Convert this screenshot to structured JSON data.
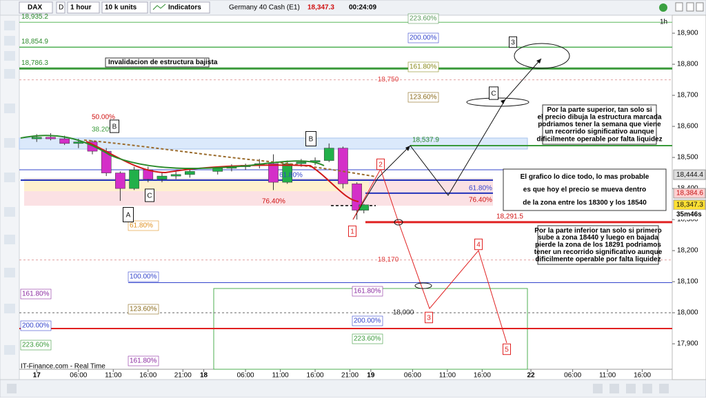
{
  "toolbar": {
    "symbol": "DAX",
    "period_code": "D",
    "timeframe": "1 hour",
    "units": "10 k units",
    "indicators": "Indicators",
    "instrument": "Germany 40 Cash (E1)",
    "price": "18,347.3",
    "timer": "00:24:09"
  },
  "chart_data": {
    "type": "candlestick",
    "timeframe_label": "1h",
    "x": [
      0,
      2,
      4,
      6,
      8,
      10,
      12,
      14,
      16,
      18,
      20,
      22,
      26,
      28,
      30,
      32,
      34,
      36,
      38,
      40,
      42,
      44,
      46,
      47
    ],
    "open": [
      18560,
      18565,
      18560,
      18545,
      18550,
      18520,
      18450,
      18400,
      18460,
      18430,
      18440,
      18445,
      18455,
      18465,
      18470,
      18475,
      18480,
      18420,
      18480,
      18485,
      18490,
      18530,
      18415,
      18330
    ],
    "high": [
      18575,
      18578,
      18570,
      18560,
      18555,
      18530,
      18455,
      18470,
      18470,
      18450,
      18455,
      18460,
      18470,
      18478,
      18480,
      18495,
      18510,
      18490,
      18495,
      18500,
      18545,
      18535,
      18420,
      18350
    ],
    "low": [
      18550,
      18555,
      18540,
      18530,
      18510,
      18440,
      18360,
      18395,
      18420,
      18420,
      18430,
      18435,
      18445,
      18455,
      18460,
      18465,
      18395,
      18415,
      18470,
      18475,
      18485,
      18400,
      18300,
      18320
    ],
    "close": [
      18565,
      18560,
      18545,
      18550,
      18520,
      18450,
      18400,
      18460,
      18430,
      18440,
      18445,
      18455,
      18465,
      18470,
      18475,
      18480,
      18420,
      18480,
      18485,
      18490,
      18530,
      18415,
      18330,
      18347.3
    ],
    "up_color": "#22b04a",
    "down_color": "#d42fc8",
    "xlim": [
      -2.5,
      91.3
    ],
    "ylim": [
      17818,
      18958
    ],
    "xticks": [
      {
        "value": 0,
        "label": "17"
      },
      {
        "value": 6,
        "label": "06:00"
      },
      {
        "value": 11,
        "label": "11:00"
      },
      {
        "value": 16,
        "label": "16:00"
      },
      {
        "value": 21,
        "label": "21:00"
      },
      {
        "value": 24,
        "label": "18"
      },
      {
        "value": 30,
        "label": "06:00"
      },
      {
        "value": 35,
        "label": "11:00"
      },
      {
        "value": 40,
        "label": "16:00"
      },
      {
        "value": 45,
        "label": "21:00"
      },
      {
        "value": 48,
        "label": "19"
      },
      {
        "value": 54,
        "label": "06:00"
      },
      {
        "value": 59,
        "label": "11:00"
      },
      {
        "value": 64,
        "label": "16:00"
      },
      {
        "value": 71,
        "label": "22"
      },
      {
        "value": 77,
        "label": "06:00"
      },
      {
        "value": 82,
        "label": "11:00"
      },
      {
        "value": 87,
        "label": "16:00"
      }
    ],
    "yticks": [
      {
        "value": 17900,
        "label": "17,900"
      },
      {
        "value": 18000,
        "label": "18,000"
      },
      {
        "value": 18100,
        "label": "18,100"
      },
      {
        "value": 18200,
        "label": "18,200"
      },
      {
        "value": 18300,
        "label": "18,300"
      },
      {
        "value": 18400,
        "label": "18,400"
      },
      {
        "value": 18500,
        "label": "18,500"
      },
      {
        "value": 18600,
        "label": "18,600"
      },
      {
        "value": 18700,
        "label": "18,700"
      },
      {
        "value": 18800,
        "label": "18,800"
      },
      {
        "value": 18900,
        "label": "18,900"
      }
    ],
    "levels": [
      {
        "value": 18935.2,
        "label": "18,935.2",
        "color": "#5cb85c"
      },
      {
        "value": 18854.9,
        "label": "18,854.9",
        "color": "#4caf50"
      },
      {
        "value": 18786.3,
        "label": "18,786.3",
        "color": "#3a9a3a"
      },
      {
        "value": 18750,
        "label": "18,750",
        "color": "#e0a0a0"
      },
      {
        "value": 18537.9,
        "label": "18,537.9",
        "color": "#3a9a3a"
      },
      {
        "value": 18291.5,
        "label": "18,291.5",
        "color": "#e02020"
      },
      {
        "value": 18170,
        "label": "18,170",
        "color": "#e0a0a0"
      },
      {
        "value": 18000,
        "label": "18,000",
        "color": "#666666"
      },
      {
        "value": 18097,
        "color": "#3344cc"
      },
      {
        "value": 17949,
        "color": "#e02020"
      },
      {
        "value": 18427,
        "color": "#2233bb"
      },
      {
        "value": 18385,
        "color": "#2233bb"
      },
      {
        "value": 18345,
        "color": "#000000"
      }
    ],
    "price_tags": [
      {
        "value": 18444.4,
        "label": "18,444.4",
        "color": "#dddddd"
      },
      {
        "value": 18384.6,
        "label": "18,384.6",
        "color": "#ffd0d0"
      },
      {
        "value": 18347.3,
        "label": "18,347.3",
        "color": "#ffe033"
      }
    ],
    "countdown": "35m46s",
    "fib_labels": [
      "223.60%",
      "200.00%",
      "161.80%",
      "123.60%",
      "61.80%",
      "76.40%",
      "61.80%",
      "76.40%",
      "61.80%",
      "100.00%",
      "161.80%",
      "123.60%",
      "200.00%",
      "223.60%",
      "161.80%",
      "161.80%",
      "200.00%",
      "223.60%",
      "50.00%",
      "38.20%"
    ],
    "markers": [
      "A",
      "B",
      "C",
      "B",
      "C",
      "3",
      "1",
      "2",
      "3",
      "4",
      "5"
    ],
    "notes": [
      {
        "lines": [
          "Invalidacion de estructura bajista"
        ]
      },
      {
        "lines": [
          "Por la parte superior, tan solo si",
          "el precio dibuja la estructura marcada",
          "podriamos tener la semana que viene",
          "un recorrido significativo aunque",
          "dificilmente operable por falta liquidez"
        ]
      },
      {
        "lines": [
          "El grafico lo dice todo, lo mas probable",
          "es que hoy el precio se mueva dentro",
          "de la zona entre los 18300 y los 18540"
        ]
      },
      {
        "lines": [
          "Por la parte inferior tan solo si primero",
          "sube a zona 18440 y luego en bajada",
          "pierde la zona de los 18291 podriamos",
          "tener un recorrido significativo aunque",
          "dificilmente operable por falta liquidez"
        ]
      }
    ]
  },
  "footer": {
    "source": "IT-Finance.com - Real Time"
  }
}
